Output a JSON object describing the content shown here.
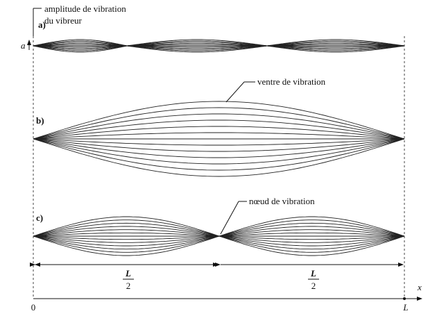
{
  "labels": {
    "amplitude": "amplitude de vibration",
    "vibreur": "du vibreur",
    "a_symbol": "a",
    "ventre": "ventre de vibration",
    "noeud": "nœud de vibration"
  },
  "parts": [
    {
      "label": "a)"
    },
    {
      "label": "b)"
    },
    {
      "label": "c)"
    }
  ],
  "dimensions": [
    {
      "numerator": "L",
      "denominator": "2"
    },
    {
      "numerator": "L",
      "denominator": "2"
    }
  ],
  "axis": {
    "origin": "0",
    "end": "L",
    "variable": "x"
  }
}
